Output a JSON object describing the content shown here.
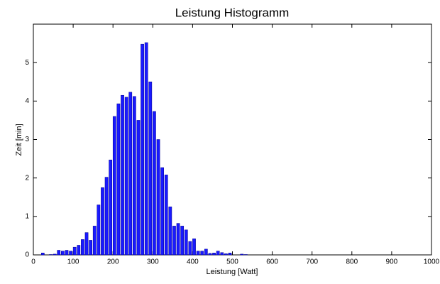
{
  "chart_data": {
    "type": "histogram",
    "title": "Leistung Histogramm",
    "x_label": "Leistung [Watt]",
    "y_label": "Zeit [min]",
    "bins": [
      20,
      30,
      40,
      50,
      60,
      70,
      80,
      90,
      100,
      110,
      120,
      130,
      140,
      150,
      160,
      170,
      180,
      190,
      200,
      210,
      220,
      230,
      240,
      250,
      260,
      270,
      280,
      290,
      300,
      310,
      320,
      330,
      340,
      350,
      360,
      370,
      380,
      390,
      400,
      410,
      420,
      430,
      440,
      450,
      460,
      470,
      480,
      490,
      500,
      510,
      520,
      530,
      540
    ],
    "values": [
      0.05,
      0,
      0.01,
      0.02,
      0.12,
      0.1,
      0.12,
      0.1,
      0.2,
      0.25,
      0.4,
      0.58,
      0.38,
      0.75,
      1.3,
      1.75,
      2.02,
      2.47,
      3.6,
      3.93,
      4.15,
      4.1,
      4.23,
      4.12,
      3.5,
      5.48,
      5.52,
      4.5,
      3.73,
      3.0,
      2.27,
      2.08,
      1.25,
      0.75,
      0.82,
      0.75,
      0.65,
      0.35,
      0.42,
      0.1,
      0.1,
      0.15,
      0.04,
      0.05,
      0.1,
      0.06,
      0.03,
      0.05,
      0,
      0,
      0.02,
      0.01
    ],
    "color": "#1a1aff",
    "xlim": [
      0,
      1000
    ],
    "xticks": [
      0,
      100,
      200,
      300,
      400,
      500,
      600,
      700,
      800,
      900,
      1000
    ],
    "ylim": [
      0,
      6
    ],
    "yticks": [
      0,
      1,
      2,
      3,
      4,
      5
    ]
  }
}
